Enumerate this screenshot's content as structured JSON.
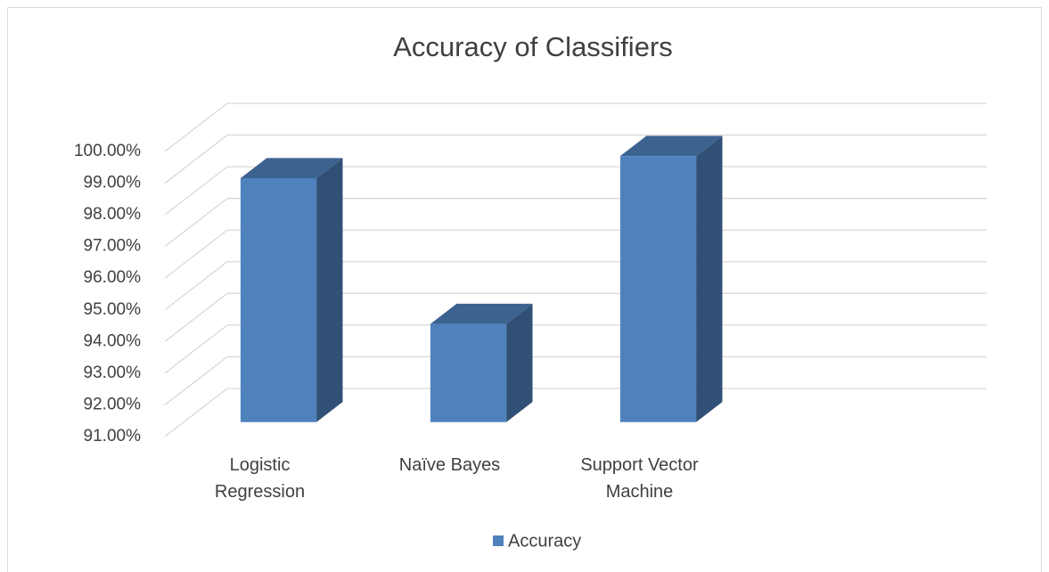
{
  "chart_data": {
    "type": "bar3d",
    "title": "Accuracy of Classifiers",
    "categories": [
      "Logistic Regression",
      "Naïve Bayes",
      "Support Vector Machine",
      null
    ],
    "series": [
      {
        "name": "Accuracy",
        "color": "#4f81bd",
        "values": [
          98.7,
          94.1,
          99.4,
          null
        ]
      }
    ],
    "ylim": [
      91,
      100
    ],
    "yticks": [
      {
        "value": 91,
        "label": "91.00%"
      },
      {
        "value": 92,
        "label": "92.00%"
      },
      {
        "value": 93,
        "label": "93.00%"
      },
      {
        "value": 94,
        "label": "94.00%"
      },
      {
        "value": 95,
        "label": "95.00%"
      },
      {
        "value": 96,
        "label": "96.00%"
      },
      {
        "value": 97,
        "label": "97.00%"
      },
      {
        "value": 98,
        "label": "98.00%"
      },
      {
        "value": 99,
        "label": "99.00%"
      },
      {
        "value": 100,
        "label": "100.00%"
      }
    ],
    "grid": true,
    "legend": "bottom"
  }
}
